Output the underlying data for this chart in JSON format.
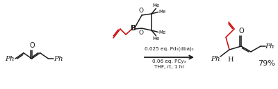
{
  "bg_color": "#ffffff",
  "line_color": "#1a1a1a",
  "red_color": "#cc0000",
  "arrow_text1": "0.025 eq. Pd₂(dba)₃",
  "arrow_text2": "0.06 eq. PCy₃",
  "arrow_text3": "THF, rt, 1 hr",
  "yield_text": "79%",
  "figsize": [
    4.0,
    1.29
  ],
  "dpi": 100
}
